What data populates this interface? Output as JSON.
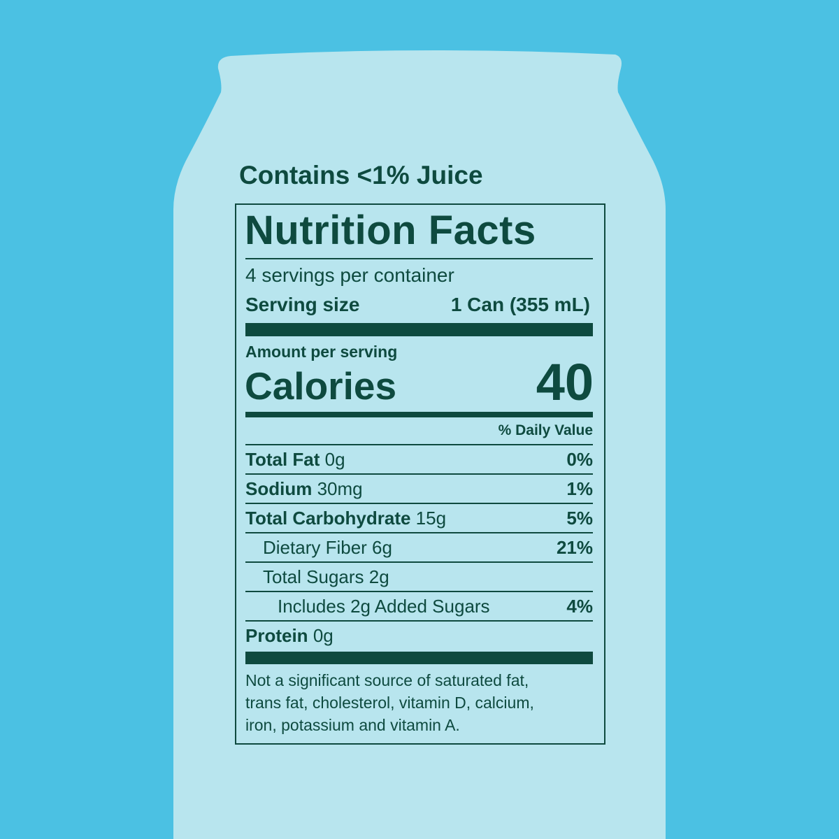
{
  "colors": {
    "background": "#4bc1e3",
    "can": "#b8e5ee",
    "ink": "#0e4a3f"
  },
  "juice_note": "Contains <1% Juice",
  "label": {
    "title": "Nutrition Facts",
    "servings": "4 servings per container",
    "serving_size_label": "Serving size",
    "serving_size_value": "1 Can (355 mL)",
    "amount_per_serving": "Amount per serving",
    "calories_label": "Calories",
    "calories_value": "40",
    "daily_value_header": "% Daily Value",
    "nutrients": [
      {
        "name": "Total Fat",
        "amount": "0g",
        "dv": "0%",
        "bold": true,
        "indent": 0
      },
      {
        "name": "Sodium",
        "amount": "30mg",
        "dv": "1%",
        "bold": true,
        "indent": 0
      },
      {
        "name": "Total Carbohydrate",
        "amount": "15g",
        "dv": "5%",
        "bold": true,
        "indent": 0
      },
      {
        "name": "Dietary Fiber 6g",
        "amount": "",
        "dv": "21%",
        "bold": false,
        "indent": 1
      },
      {
        "name": "Total Sugars 2g",
        "amount": "",
        "dv": "",
        "bold": false,
        "indent": 1
      },
      {
        "name": "Includes 2g Added Sugars",
        "amount": "",
        "dv": "4%",
        "bold": false,
        "indent": 2
      },
      {
        "name": "Protein",
        "amount": "0g",
        "dv": "",
        "bold": true,
        "indent": 0
      }
    ],
    "footnote_lines": [
      "Not a significant source of saturated fat,",
      "trans fat, cholesterol, vitamin D, calcium,",
      "iron, potassium and vitamin A."
    ]
  }
}
